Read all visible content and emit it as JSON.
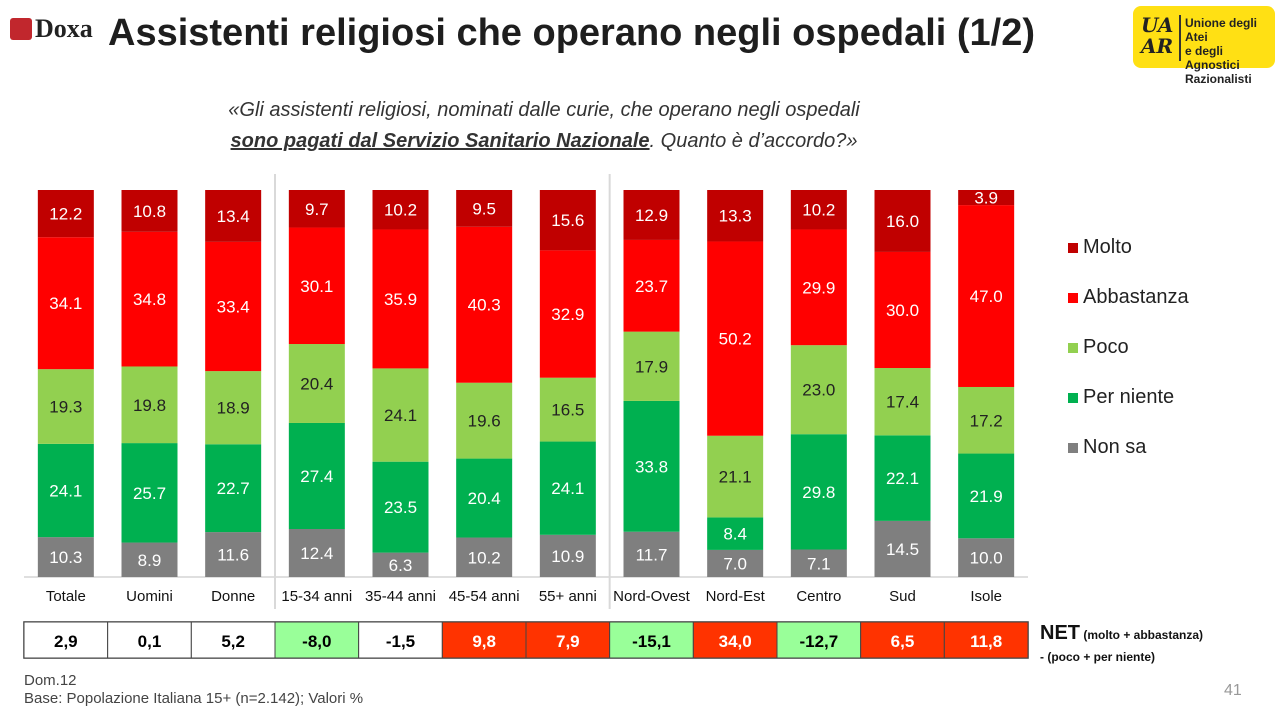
{
  "header": {
    "brand": "Doxa",
    "title": "Assistenti religiosi che operano negli ospedali (1/2)",
    "uaar_monogram": [
      "UA",
      "AR"
    ],
    "uaar_name": [
      "Unione degli Atei",
      "e degli Agnostici",
      "Razionalisti"
    ]
  },
  "question": {
    "line1": "«Gli assistenti religiosi, nominati dalle curie, che operano negli ospedali",
    "line2_emph": "sono pagati dal Servizio Sanitario Nazionale",
    "line2_rest": ". Quanto è d’accordo?»"
  },
  "chart_data": {
    "type": "bar",
    "stacked": true,
    "normalized": true,
    "categories": [
      "Totale",
      "Uomini",
      "Donne",
      "15-34 anni",
      "35-44 anni",
      "45-54 anni",
      "55+ anni",
      "Nord-Ovest",
      "Nord-Est",
      "Centro",
      "Sud",
      "Isole"
    ],
    "series": [
      {
        "name": "Non sa",
        "color": "#7f7f7f",
        "values": [
          10.3,
          8.9,
          11.6,
          12.4,
          6.3,
          10.2,
          10.9,
          11.7,
          7.0,
          7.1,
          14.5,
          10.0
        ]
      },
      {
        "name": "Per niente",
        "color": "#00b050",
        "values": [
          24.1,
          25.7,
          22.7,
          27.4,
          23.5,
          20.4,
          24.1,
          33.8,
          8.4,
          29.8,
          22.1,
          21.9
        ]
      },
      {
        "name": "Poco",
        "color": "#92d050",
        "values": [
          19.3,
          19.8,
          18.9,
          20.4,
          24.1,
          19.6,
          16.5,
          17.9,
          21.1,
          23.0,
          17.4,
          17.2
        ]
      },
      {
        "name": "Abbastanza",
        "color": "#ff0000",
        "values": [
          34.1,
          34.8,
          33.4,
          30.1,
          35.9,
          40.3,
          32.9,
          23.7,
          50.2,
          29.9,
          30.0,
          47.0
        ]
      },
      {
        "name": "Molto",
        "color": "#c00000",
        "values": [
          12.2,
          10.8,
          13.4,
          9.7,
          10.2,
          9.5,
          15.6,
          12.9,
          13.3,
          10.2,
          16.0,
          3.9
        ]
      }
    ],
    "group_separators_after": [
      "Donne",
      "55+ anni"
    ],
    "legend": [
      "Molto",
      "Abbastanza",
      "Poco",
      "Per niente",
      "Non sa"
    ],
    "legend_position": "right"
  },
  "net": {
    "label_main": "NET",
    "label_paren": "(molto + abbastanza)",
    "label_line2": "- (poco + per niente)",
    "values": [
      "2,9",
      "0,1",
      "5,2",
      "-8,0",
      "-1,5",
      "9,8",
      "7,9",
      "-15,1",
      "34,0",
      "-12,7",
      "6,5",
      "11,8"
    ],
    "fills": [
      "#ffffff",
      "#ffffff",
      "#ffffff",
      "#99ff99",
      "#ffffff",
      "#ff3300",
      "#ff3300",
      "#99ff99",
      "#ff3300",
      "#99ff99",
      "#ff3300",
      "#ff3300"
    ],
    "text_colors": [
      "#000000",
      "#000000",
      "#000000",
      "#000000",
      "#000000",
      "#ffffff",
      "#ffffff",
      "#000000",
      "#ffffff",
      "#000000",
      "#ffffff",
      "#ffffff"
    ]
  },
  "footer": {
    "code": "Dom.12",
    "base": "Base: Popolazione Italiana 15+ (n=2.142); Valori %",
    "page": "41"
  }
}
